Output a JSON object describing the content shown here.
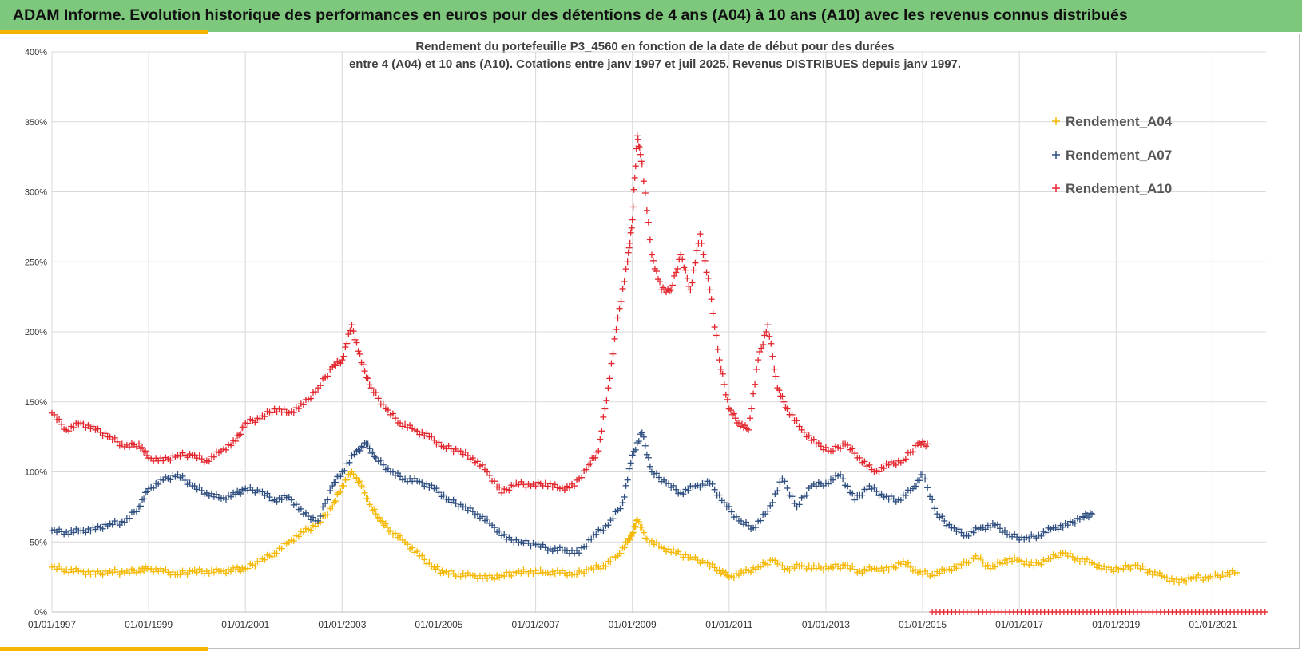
{
  "header": {
    "banner_title": "ADAM Informe. Evolution historique des performances en euros pour des détentions de 4 ans (A04) à 10 ans (A10) avec les revenus connus distribués"
  },
  "colors": {
    "banner": "#7ec87e",
    "accent": "#f5b400",
    "A04": "#f5b800",
    "A07": "#2f4f80",
    "A10": "#e3262e"
  },
  "chart_data": {
    "type": "scatter",
    "title_line1": "Rendement du portefeuille P3_4560 en fonction de la date de début pour des durées",
    "title_line2": "entre 4 (A04) et 10 ans (A10). Cotations  entre janv 1997 et juil 2025. Revenus DISTRIBUES depuis janv 1997.",
    "xlabel": "",
    "ylabel": "",
    "ylim": [
      0,
      4
    ],
    "y_ticks": [
      "0%",
      "50%",
      "100%",
      "150%",
      "200%",
      "250%",
      "300%",
      "350%",
      "400%"
    ],
    "x_ticks": [
      "01/01/1997",
      "01/01/1999",
      "01/01/2001",
      "01/01/2003",
      "01/01/2005",
      "01/01/2007",
      "01/01/2009",
      "01/01/2011",
      "01/01/2013",
      "01/01/2015",
      "01/01/2017",
      "01/01/2019",
      "01/01/2021"
    ],
    "xlim": [
      1997.0,
      2022.1
    ],
    "grid": true,
    "legend_position": "right",
    "marker": "+",
    "series": [
      {
        "name": "Rendement_A04",
        "color": "#f5b800",
        "x": [
          1997.0,
          1997.3,
          1997.6,
          1997.9,
          1998.2,
          1998.5,
          1998.8,
          1999.0,
          1999.3,
          1999.6,
          1999.9,
          2000.2,
          2000.5,
          2000.8,
          2001.0,
          2001.3,
          2001.6,
          2001.9,
          2002.2,
          2002.5,
          2002.8,
          2003.0,
          2003.2,
          2003.4,
          2003.6,
          2003.8,
          2004.0,
          2004.3,
          2004.6,
          2004.9,
          2005.1,
          2005.4,
          2005.7,
          2006.0,
          2006.3,
          2006.6,
          2006.9,
          2007.2,
          2007.5,
          2007.8,
          2008.1,
          2008.4,
          2008.7,
          2008.9,
          2009.0,
          2009.1,
          2009.3,
          2009.6,
          2009.9,
          2010.2,
          2010.5,
          2010.8,
          2011.0,
          2011.3,
          2011.6,
          2011.9,
          2012.2,
          2012.5,
          2012.8,
          2013.1,
          2013.4,
          2013.7,
          2014.0,
          2014.3,
          2014.6,
          2014.9,
          2015.2,
          2015.5,
          2015.8,
          2016.1,
          2016.4,
          2016.7,
          2017.0,
          2017.3,
          2017.6,
          2017.9,
          2018.2,
          2018.5,
          2018.8,
          2019.1,
          2019.4,
          2019.7,
          2020.0,
          2020.3,
          2020.6,
          2020.9,
          2021.2,
          2021.5
        ],
        "y": [
          0.32,
          0.3,
          0.29,
          0.27,
          0.29,
          0.28,
          0.3,
          0.31,
          0.29,
          0.27,
          0.29,
          0.29,
          0.29,
          0.3,
          0.31,
          0.36,
          0.42,
          0.5,
          0.57,
          0.63,
          0.75,
          0.9,
          1.0,
          0.9,
          0.75,
          0.65,
          0.58,
          0.5,
          0.4,
          0.32,
          0.28,
          0.27,
          0.26,
          0.24,
          0.26,
          0.28,
          0.29,
          0.28,
          0.28,
          0.27,
          0.3,
          0.33,
          0.4,
          0.5,
          0.56,
          0.66,
          0.52,
          0.46,
          0.42,
          0.39,
          0.35,
          0.3,
          0.25,
          0.28,
          0.32,
          0.37,
          0.31,
          0.33,
          0.31,
          0.32,
          0.33,
          0.29,
          0.31,
          0.3,
          0.36,
          0.28,
          0.27,
          0.3,
          0.33,
          0.4,
          0.31,
          0.37,
          0.37,
          0.33,
          0.38,
          0.42,
          0.38,
          0.35,
          0.3,
          0.31,
          0.33,
          0.29,
          0.25,
          0.21,
          0.25,
          0.24,
          0.27,
          0.28
        ]
      },
      {
        "name": "Rendement_A07",
        "color": "#2f4f80",
        "x": [
          1997.0,
          1997.3,
          1997.6,
          1997.9,
          1998.2,
          1998.5,
          1998.8,
          1999.0,
          1999.3,
          1999.6,
          1999.9,
          2000.2,
          2000.5,
          2000.8,
          2001.0,
          2001.3,
          2001.6,
          2001.9,
          2002.2,
          2002.5,
          2002.8,
          2003.0,
          2003.3,
          2003.5,
          2003.7,
          2004.0,
          2004.3,
          2004.6,
          2004.9,
          2005.2,
          2005.5,
          2005.8,
          2006.1,
          2006.4,
          2006.7,
          2007.0,
          2007.3,
          2007.6,
          2007.9,
          2008.2,
          2008.5,
          2008.8,
          2009.0,
          2009.2,
          2009.4,
          2009.7,
          2010.0,
          2010.3,
          2010.6,
          2010.9,
          2011.2,
          2011.5,
          2011.8,
          2012.1,
          2012.4,
          2012.7,
          2013.0,
          2013.3,
          2013.6,
          2013.9,
          2014.2,
          2014.5,
          2014.8,
          2015.0,
          2015.3,
          2015.6,
          2015.9,
          2016.2,
          2016.5,
          2016.8,
          2017.1,
          2017.4,
          2017.7,
          2018.0,
          2018.3,
          2018.5
        ],
        "y": [
          0.58,
          0.57,
          0.58,
          0.59,
          0.63,
          0.64,
          0.75,
          0.88,
          0.94,
          0.98,
          0.9,
          0.85,
          0.81,
          0.84,
          0.88,
          0.86,
          0.8,
          0.82,
          0.7,
          0.65,
          0.9,
          1.0,
          1.15,
          1.2,
          1.1,
          1.0,
          0.95,
          0.93,
          0.88,
          0.8,
          0.75,
          0.7,
          0.62,
          0.52,
          0.5,
          0.48,
          0.45,
          0.44,
          0.42,
          0.55,
          0.62,
          0.78,
          1.12,
          1.28,
          1.0,
          0.92,
          0.85,
          0.9,
          0.92,
          0.78,
          0.65,
          0.6,
          0.72,
          0.95,
          0.75,
          0.9,
          0.92,
          0.98,
          0.8,
          0.9,
          0.82,
          0.8,
          0.88,
          0.98,
          0.7,
          0.6,
          0.55,
          0.6,
          0.62,
          0.55,
          0.52,
          0.55,
          0.6,
          0.62,
          0.68,
          0.7
        ]
      },
      {
        "name": "Rendement_A10",
        "color": "#e3262e",
        "x": [
          1997.0,
          1997.3,
          1997.6,
          1997.9,
          1998.2,
          1998.5,
          1998.8,
          1999.0,
          1999.3,
          1999.6,
          1999.9,
          2000.2,
          2000.5,
          2000.8,
          2001.0,
          2001.3,
          2001.6,
          2001.9,
          2002.2,
          2002.5,
          2002.8,
          2003.0,
          2003.2,
          2003.4,
          2003.6,
          2003.9,
          2004.2,
          2004.5,
          2004.8,
          2005.1,
          2005.4,
          2005.7,
          2006.0,
          2006.3,
          2006.6,
          2006.9,
          2007.2,
          2007.5,
          2007.8,
          2008.1,
          2008.3,
          2008.5,
          2008.7,
          2008.9,
          2009.0,
          2009.1,
          2009.2,
          2009.4,
          2009.6,
          2009.8,
          2010.0,
          2010.2,
          2010.4,
          2010.6,
          2010.8,
          2011.0,
          2011.2,
          2011.4,
          2011.6,
          2011.8,
          2012.0,
          2012.2,
          2012.5,
          2012.8,
          2013.1,
          2013.4,
          2013.7,
          2014.0,
          2014.3,
          2014.6,
          2014.9,
          2015.1
        ],
        "y": [
          1.42,
          1.3,
          1.35,
          1.3,
          1.25,
          1.18,
          1.2,
          1.1,
          1.08,
          1.12,
          1.12,
          1.08,
          1.15,
          1.22,
          1.35,
          1.38,
          1.45,
          1.42,
          1.48,
          1.6,
          1.75,
          1.8,
          2.05,
          1.78,
          1.6,
          1.45,
          1.35,
          1.3,
          1.25,
          1.18,
          1.15,
          1.1,
          1.0,
          0.85,
          0.92,
          0.9,
          0.92,
          0.88,
          0.9,
          1.05,
          1.15,
          1.6,
          2.1,
          2.5,
          2.8,
          3.4,
          3.2,
          2.55,
          2.3,
          2.3,
          2.55,
          2.3,
          2.7,
          2.3,
          1.8,
          1.45,
          1.35,
          1.3,
          1.8,
          2.05,
          1.6,
          1.45,
          1.3,
          1.2,
          1.15,
          1.2,
          1.1,
          1.0,
          1.05,
          1.08,
          1.2,
          1.2
        ]
      },
      {
        "name": "",
        "color": "#e3262e",
        "x_range": [
          2015.2,
          2022.1
        ],
        "y_constant": 0.0
      }
    ]
  }
}
